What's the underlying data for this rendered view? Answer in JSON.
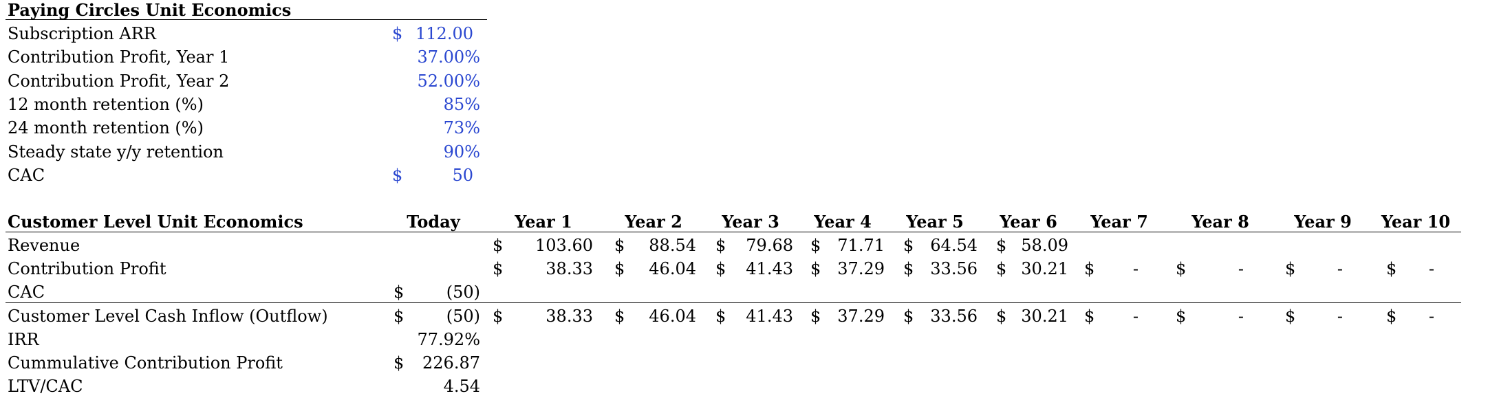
{
  "assumptions": {
    "title": "Paying Circles Unit Economics",
    "rows": [
      {
        "label": "Subscription ARR",
        "currency": "$",
        "value": "112.00"
      },
      {
        "label": "Contribution Profit, Year 1",
        "currency": "",
        "value": "37.00%"
      },
      {
        "label": "Contribution Profit, Year 2",
        "currency": "",
        "value": "52.00%"
      },
      {
        "label": "12 month retention (%)",
        "currency": "",
        "value": "85%"
      },
      {
        "label": "24 month retention (%)",
        "currency": "",
        "value": "73%"
      },
      {
        "label": "Steady state y/y retention",
        "currency": "",
        "value": "90%"
      },
      {
        "label": "CAC",
        "currency": "$",
        "value": "50"
      }
    ]
  },
  "customer": {
    "title": "Customer Level Unit Economics",
    "headers": [
      "Today",
      "Year 1",
      "Year 2",
      "Year 3",
      "Year 4",
      "Year 5",
      "Year 6",
      "Year 7",
      "Year 8",
      "Year 9",
      "Year 10"
    ],
    "rows": [
      {
        "label": "Revenue",
        "today": {
          "cur": "",
          "val": ""
        },
        "years": [
          [
            "$",
            "103.60"
          ],
          [
            "$",
            "88.54"
          ],
          [
            "$",
            "79.68"
          ],
          [
            "$",
            "71.71"
          ],
          [
            "$",
            "64.54"
          ],
          [
            "$",
            "58.09"
          ],
          [
            "",
            ""
          ],
          [
            "",
            ""
          ],
          [
            "",
            ""
          ],
          [
            "",
            ""
          ]
        ]
      },
      {
        "label": "Contribution Profit",
        "today": {
          "cur": "",
          "val": ""
        },
        "years": [
          [
            "$",
            "38.33"
          ],
          [
            "$",
            "46.04"
          ],
          [
            "$",
            "41.43"
          ],
          [
            "$",
            "37.29"
          ],
          [
            "$",
            "33.56"
          ],
          [
            "$",
            "30.21"
          ],
          [
            "$",
            "-"
          ],
          [
            "$",
            "-"
          ],
          [
            "$",
            "-"
          ],
          [
            "$",
            "-"
          ]
        ]
      },
      {
        "label": "CAC",
        "today": {
          "cur": "$",
          "val": "(50)"
        },
        "years": [
          [
            "",
            ""
          ],
          [
            "",
            ""
          ],
          [
            "",
            ""
          ],
          [
            "",
            ""
          ],
          [
            "",
            ""
          ],
          [
            "",
            ""
          ],
          [
            "",
            ""
          ],
          [
            "",
            ""
          ],
          [
            "",
            ""
          ],
          [
            "",
            ""
          ]
        ]
      },
      {
        "label": "Customer Level Cash Inflow (Outflow)",
        "today": {
          "cur": "$",
          "val": "(50)"
        },
        "years": [
          [
            "$",
            "38.33"
          ],
          [
            "$",
            "46.04"
          ],
          [
            "$",
            "41.43"
          ],
          [
            "$",
            "37.29"
          ],
          [
            "$",
            "33.56"
          ],
          [
            "$",
            "30.21"
          ],
          [
            "$",
            "-"
          ],
          [
            "$",
            "-"
          ],
          [
            "$",
            "-"
          ],
          [
            "$",
            "-"
          ]
        ]
      },
      {
        "label": "IRR",
        "today": {
          "cur": "",
          "val": "77.92%"
        },
        "years": [
          [
            "",
            ""
          ],
          [
            "",
            ""
          ],
          [
            "",
            ""
          ],
          [
            "",
            ""
          ],
          [
            "",
            ""
          ],
          [
            "",
            ""
          ],
          [
            "",
            ""
          ],
          [
            "",
            ""
          ],
          [
            "",
            ""
          ],
          [
            "",
            ""
          ]
        ]
      },
      {
        "label": "Cummulative Contribution Profit",
        "today": {
          "cur": "$",
          "val": "226.87"
        },
        "years": [
          [
            "",
            ""
          ],
          [
            "",
            ""
          ],
          [
            "",
            ""
          ],
          [
            "",
            ""
          ],
          [
            "",
            ""
          ],
          [
            "",
            ""
          ],
          [
            "",
            ""
          ],
          [
            "",
            ""
          ],
          [
            "",
            ""
          ],
          [
            "",
            ""
          ]
        ]
      },
      {
        "label": "LTV/CAC",
        "today": {
          "cur": "",
          "val": "4.54"
        },
        "years": [
          [
            "",
            ""
          ],
          [
            "",
            ""
          ],
          [
            "",
            ""
          ],
          [
            "",
            ""
          ],
          [
            "",
            ""
          ],
          [
            "",
            ""
          ],
          [
            "",
            ""
          ],
          [
            "",
            ""
          ],
          [
            "",
            ""
          ],
          [
            "",
            ""
          ]
        ]
      }
    ]
  }
}
